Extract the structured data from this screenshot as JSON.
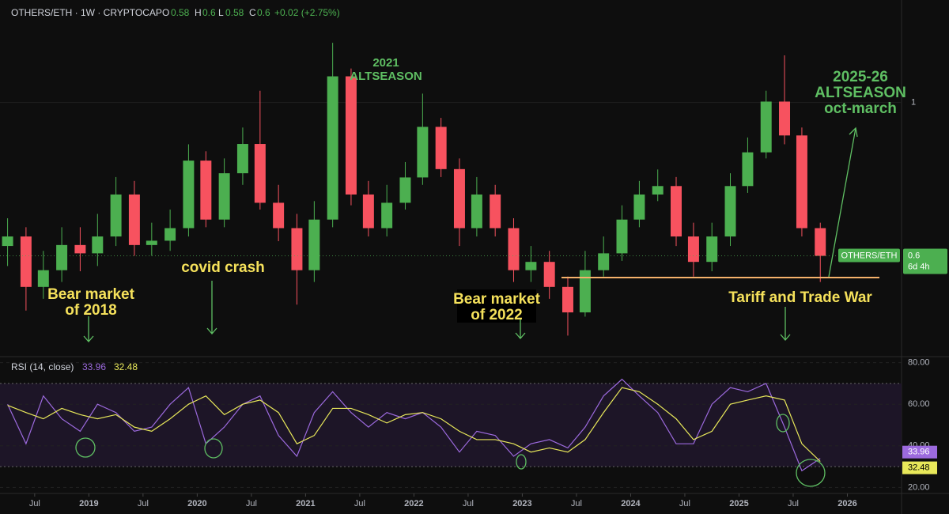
{
  "chart_data": [
    {
      "type": "candlestick",
      "title": "OTHERS/ETH · 1W · CRYPTOCAP",
      "legend_values": {
        "o_label": "O",
        "o": "0.58",
        "h_label": "H",
        "h": "0.6",
        "l_label": "L",
        "l": "0.58",
        "c_label": "C",
        "c": "0.6",
        "change": "+0.02 (+2.75%)"
      },
      "series_name": "OTHERS/ETH",
      "countdown": "6d 4h",
      "up_color": "#4caf50",
      "down_color": "#f7525f",
      "log_scale": true,
      "x": [
        2018.25,
        2018.42,
        2018.58,
        2018.75,
        2018.92,
        2019.08,
        2019.25,
        2019.42,
        2019.58,
        2019.75,
        2019.92,
        2020.08,
        2020.25,
        2020.42,
        2020.58,
        2020.75,
        2020.92,
        2021.08,
        2021.25,
        2021.42,
        2021.58,
        2021.75,
        2021.92,
        2022.08,
        2022.25,
        2022.42,
        2022.58,
        2022.75,
        2022.92,
        2023.08,
        2023.25,
        2023.42,
        2023.58,
        2023.75,
        2023.92,
        2024.08,
        2024.25,
        2024.42,
        2024.58,
        2024.75,
        2024.92,
        2025.08,
        2025.25,
        2025.42,
        2025.58,
        2025.75
      ],
      "open": [
        0.62,
        0.64,
        0.541,
        0.572,
        0.622,
        0.605,
        0.64,
        0.736,
        0.622,
        0.631,
        0.658,
        0.824,
        0.677,
        0.79,
        0.871,
        0.716,
        0.658,
        0.572,
        0.677,
        1.091,
        0.736,
        0.658,
        0.716,
        0.779,
        0.922,
        0.801,
        0.658,
        0.736,
        0.658,
        0.572,
        0.588,
        0.541,
        0.497,
        0.572,
        0.605,
        0.677,
        0.736,
        0.757,
        0.64,
        0.588,
        0.64,
        0.757,
        0.847,
        1.003,
        0.896,
        0.658
      ],
      "high": [
        0.68,
        0.66,
        0.61,
        0.66,
        0.66,
        0.69,
        0.78,
        0.77,
        0.67,
        0.7,
        0.87,
        0.85,
        0.83,
        0.92,
        1.04,
        0.76,
        0.69,
        0.72,
        1.22,
        1.12,
        0.77,
        0.76,
        0.82,
        1.03,
        0.95,
        0.83,
        0.78,
        0.76,
        0.68,
        0.62,
        0.61,
        0.56,
        0.61,
        0.64,
        0.71,
        0.77,
        0.8,
        0.78,
        0.67,
        0.67,
        0.79,
        0.89,
        1.04,
        1.17,
        0.92,
        0.67
      ],
      "low": [
        0.58,
        0.5,
        0.52,
        0.55,
        0.57,
        0.58,
        0.62,
        0.6,
        0.6,
        0.61,
        0.64,
        0.66,
        0.66,
        0.76,
        0.7,
        0.63,
        0.51,
        0.55,
        0.66,
        0.71,
        0.64,
        0.64,
        0.7,
        0.76,
        0.78,
        0.62,
        0.64,
        0.64,
        0.55,
        0.55,
        0.52,
        0.46,
        0.49,
        0.56,
        0.59,
        0.66,
        0.72,
        0.62,
        0.56,
        0.57,
        0.62,
        0.74,
        0.83,
        0.87,
        0.64,
        0.55
      ],
      "close": [
        0.64,
        0.541,
        0.572,
        0.622,
        0.605,
        0.64,
        0.736,
        0.622,
        0.631,
        0.658,
        0.824,
        0.677,
        0.79,
        0.871,
        0.716,
        0.658,
        0.572,
        0.677,
        1.091,
        0.736,
        0.658,
        0.716,
        0.779,
        0.922,
        0.801,
        0.658,
        0.736,
        0.658,
        0.572,
        0.588,
        0.541,
        0.497,
        0.572,
        0.605,
        0.677,
        0.736,
        0.757,
        0.64,
        0.588,
        0.64,
        0.757,
        0.847,
        1.003,
        0.896,
        0.658,
        0.6
      ],
      "xlim": [
        2018.18,
        2026.5
      ],
      "ylim": [
        0.43,
        1.3
      ],
      "yticks": [
        1
      ],
      "annotations": [
        {
          "lines": [
            "Bear market",
            "of 2018"
          ],
          "color": "#f5e15b"
        },
        {
          "lines": [
            "covid crash"
          ],
          "color": "#f5e15b"
        },
        {
          "lines": [
            "2021",
            "ALTSEASON"
          ],
          "color": "#5fbf63"
        },
        {
          "lines": [
            "Bear market",
            "of 2022"
          ],
          "color": "#f5e15b"
        },
        {
          "lines": [
            "Tariff and Trade War"
          ],
          "color": "#f5e15b"
        },
        {
          "lines": [
            "2025-26",
            "ALTSEASON",
            "oct-march"
          ],
          "color": "#5fbf63"
        }
      ]
    },
    {
      "type": "line",
      "title": "RSI (14, close)",
      "x": [
        2018.25,
        2018.42,
        2018.58,
        2018.75,
        2018.92,
        2019.08,
        2019.25,
        2019.42,
        2019.58,
        2019.75,
        2019.92,
        2020.08,
        2020.25,
        2020.42,
        2020.58,
        2020.75,
        2020.92,
        2021.08,
        2021.25,
        2021.42,
        2021.58,
        2021.75,
        2021.92,
        2022.08,
        2022.25,
        2022.42,
        2022.58,
        2022.75,
        2022.92,
        2023.08,
        2023.25,
        2023.42,
        2023.58,
        2023.75,
        2023.92,
        2024.08,
        2024.25,
        2024.42,
        2024.58,
        2024.75,
        2024.92,
        2025.08,
        2025.25,
        2025.42,
        2025.58,
        2025.75
      ],
      "series": [
        {
          "name": "RSI",
          "color": "#9c6ade",
          "values": [
            60,
            41,
            64,
            53,
            47,
            60,
            56,
            47,
            49,
            60,
            68,
            41,
            49,
            60,
            64,
            45,
            35,
            56,
            66,
            56,
            49,
            56,
            53,
            56,
            49,
            37,
            47,
            45,
            35,
            41,
            43,
            39,
            49,
            64,
            72,
            64,
            56,
            41,
            41,
            60,
            68,
            66,
            70,
            49,
            28,
            33.96
          ]
        },
        {
          "name": "RSI MA",
          "color": "#e8e85a",
          "values": [
            59.5,
            56,
            53,
            58,
            55,
            53,
            55,
            49,
            47,
            53,
            60,
            64,
            55,
            60,
            62,
            56,
            41,
            45,
            58,
            58,
            55,
            51,
            55,
            56,
            53,
            47,
            43,
            43,
            41,
            37,
            39,
            37,
            43,
            56,
            68,
            66,
            60,
            53,
            43,
            47,
            60,
            62,
            64,
            62,
            41,
            32.48
          ]
        }
      ],
      "band": [
        30,
        70
      ],
      "xlim": [
        2018.18,
        2026.5
      ],
      "ylim": [
        17.5,
        82.5
      ],
      "yticks": [
        {
          "value": 20,
          "label": "20.00"
        },
        {
          "value": 40,
          "label": "40.00"
        },
        {
          "value": 60,
          "label": "60.00"
        },
        {
          "value": 80,
          "label": "80.00"
        }
      ],
      "xticks": [
        {
          "value": 2018.5,
          "label": "Jul"
        },
        2019,
        {
          "value": 2019.5,
          "label": "Jul"
        },
        2020,
        {
          "value": 2020.5,
          "label": "Jul"
        },
        2021,
        {
          "value": 2021.5,
          "label": "Jul"
        },
        2022,
        {
          "value": 2022.5,
          "label": "Jul"
        },
        2023,
        {
          "value": 2023.5,
          "label": "Jul"
        },
        2024,
        {
          "value": 2024.5,
          "label": "Jul"
        },
        2025,
        {
          "value": 2025.5,
          "label": "Jul"
        },
        2026
      ]
    }
  ]
}
